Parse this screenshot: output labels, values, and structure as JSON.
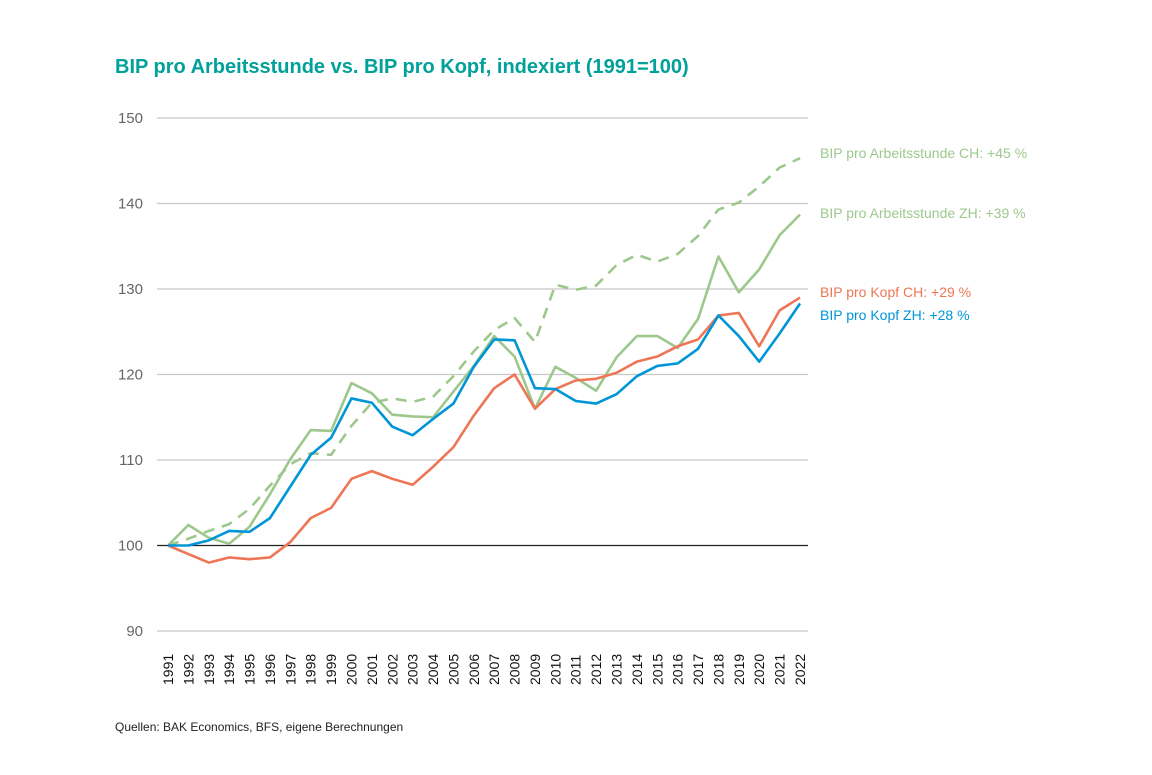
{
  "title": "BIP pro Arbeitsstunde vs. BIP pro Kopf, indexiert (1991=100)",
  "source": "Quellen: BAK Economics, BFS, eigene Berechnungen",
  "chart_data": {
    "type": "line",
    "title": "BIP pro Arbeitsstunde vs. BIP pro Kopf, indexiert (1991=100)",
    "xlabel": "",
    "ylabel": "",
    "ylim": [
      90,
      150
    ],
    "yticks": [
      90,
      100,
      110,
      120,
      130,
      140,
      150
    ],
    "grid": true,
    "legend": "right (line-end labels)",
    "categories": [
      "1991",
      "1992",
      "1993",
      "1994",
      "1995",
      "1996",
      "1997",
      "1998",
      "1999",
      "2000",
      "2001",
      "2002",
      "2003",
      "2004",
      "2005",
      "2006",
      "2007",
      "2008",
      "2009",
      "2010",
      "2011",
      "2012",
      "2013",
      "2014",
      "2015",
      "2016",
      "2017",
      "2018",
      "2019",
      "2020",
      "2021",
      "2022"
    ],
    "series": [
      {
        "name": "BIP pro Arbeitsstunde CH: +45 %",
        "color": "#9DC88D",
        "dashed": true,
        "values": [
          100,
          100.8,
          101.7,
          102.5,
          104.3,
          107,
          109.5,
          110.8,
          110.6,
          114,
          116.7,
          117.2,
          116.8,
          117.4,
          119.8,
          122.7,
          125.2,
          126.6,
          123.8,
          130.5,
          129.9,
          130.4,
          132.8,
          134,
          133.2,
          134.1,
          136.2,
          139.3,
          140.1,
          142,
          144.2,
          145.3
        ]
      },
      {
        "name": "BIP pro Arbeitsstunde ZH: +39 %",
        "color": "#9DC88D",
        "dashed": false,
        "values": [
          100,
          102.4,
          100.9,
          100.2,
          102.2,
          106,
          110.1,
          113.5,
          113.4,
          119,
          117.8,
          115.3,
          115.1,
          115,
          118,
          121,
          124.5,
          122.1,
          116,
          120.9,
          119.6,
          118.1,
          122,
          124.5,
          124.5,
          123.1,
          126.5,
          133.8,
          129.6,
          132.3,
          136.3,
          138.7
        ]
      },
      {
        "name": "BIP pro Kopf CH: +29 %",
        "color": "#EE7656",
        "dashed": false,
        "values": [
          100,
          99,
          98,
          98.6,
          98.4,
          98.6,
          100.4,
          103.2,
          104.4,
          107.8,
          108.7,
          107.8,
          107.1,
          109.2,
          111.5,
          115.2,
          118.4,
          120,
          116,
          118.3,
          119.3,
          119.5,
          120.2,
          121.5,
          122.1,
          123.3,
          124.1,
          126.9,
          127.2,
          123.3,
          127.5,
          129
        ]
      },
      {
        "name": "BIP pro Kopf ZH: +28 %",
        "color": "#0095D6",
        "dashed": false,
        "values": [
          100,
          100,
          100.6,
          101.7,
          101.6,
          103.2,
          106.9,
          110.6,
          112.6,
          117.2,
          116.7,
          113.9,
          112.9,
          114.8,
          116.6,
          120.9,
          124.1,
          124,
          118.4,
          118.3,
          116.9,
          116.6,
          117.7,
          119.8,
          121,
          121.3,
          123,
          126.9,
          124.5,
          121.5,
          124.8,
          128.3
        ]
      }
    ]
  }
}
